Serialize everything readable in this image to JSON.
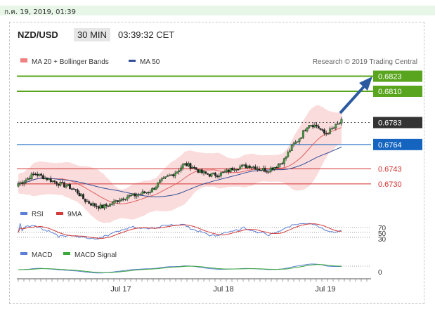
{
  "topbar": {
    "date_text": "ก.ค. 19, 2019, 01:39"
  },
  "header": {
    "pair": "NZD/USD",
    "timeframe": "30 MIN",
    "time": "03:39:32 CET"
  },
  "price_panel": {
    "legend": [
      {
        "name": "MA 20 + Bollinger Bands",
        "color": "#f08080"
      },
      {
        "name": "MA 50",
        "color": "#334f9a"
      }
    ],
    "credit": "Research © 2019 Trading Central"
  },
  "rsi_panel": {
    "legend": [
      {
        "name": "RSI",
        "color": "#5b7fd4"
      },
      {
        "name": "9MA",
        "color": "#d43a3a"
      }
    ],
    "levels": [
      "70",
      "50",
      "30"
    ]
  },
  "macd_panel": {
    "legend": [
      {
        "name": "MACD",
        "color": "#5b7fd4"
      },
      {
        "name": "MACD Signal",
        "color": "#3aa83a"
      }
    ],
    "levels": [
      "0"
    ]
  },
  "chart_data": {
    "type": "candlestick",
    "x_ticks": [
      "Jul 17",
      "Jul 18",
      "Jul 19"
    ],
    "ylim": [
      0.6716,
      0.683
    ],
    "resistance_levels": [
      0.6823,
      0.681
    ],
    "current_price": 0.6783,
    "pivot": 0.6764,
    "support_levels": [
      0.6743,
      0.673
    ],
    "colors": {
      "resistance": "#5aa51e",
      "pivot": "#1565c0",
      "support": "#d32f2f",
      "current": "#333333"
    },
    "close_path": [
      0.673,
      0.6734,
      0.6739,
      0.6736,
      0.6733,
      0.673,
      0.6728,
      0.6724,
      0.6716,
      0.6712,
      0.671,
      0.6712,
      0.6716,
      0.6719,
      0.672,
      0.6722,
      0.6724,
      0.6731,
      0.6736,
      0.674,
      0.6747,
      0.6745,
      0.674,
      0.6738,
      0.6738,
      0.674,
      0.6744,
      0.6745,
      0.6746,
      0.6743,
      0.6742,
      0.6745,
      0.675,
      0.6762,
      0.677,
      0.6782,
      0.678,
      0.6773,
      0.6778,
      0.6784
    ]
  }
}
